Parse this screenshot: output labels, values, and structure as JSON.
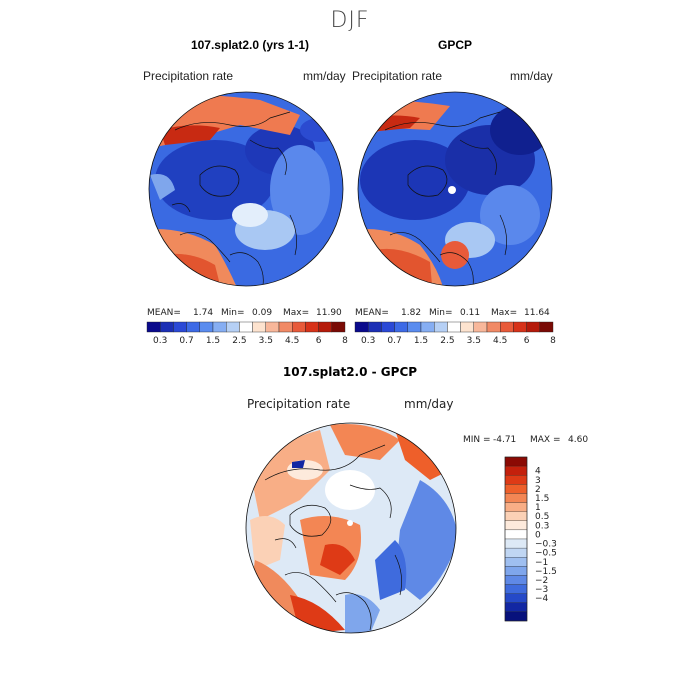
{
  "season": "DJF",
  "panels": [
    {
      "title": "107.splat2.0 (yrs 1-1)",
      "variable": "Precipitation rate",
      "units": "mm/day",
      "mean_label": "MEAN=",
      "mean": "1.74",
      "min_label": "Min=",
      "min": "0.09",
      "max_label": "Max=",
      "max": "11.90"
    },
    {
      "title": "GPCP",
      "variable": "Precipitation rate",
      "units": "mm/day",
      "mean_label": "MEAN=",
      "mean": "1.82",
      "min_label": "Min=",
      "min": "0.11",
      "max_label": "Max=",
      "max": "11.64"
    }
  ],
  "precip_colorbar": {
    "colors": [
      "#0a0a8c",
      "#1c2fb5",
      "#2b49d6",
      "#3d6ae6",
      "#5a8cef",
      "#86aef3",
      "#b6d0f5",
      "#ffffff",
      "#fde3cf",
      "#f8b79a",
      "#f18a66",
      "#e85a3a",
      "#d73219",
      "#b51a0a",
      "#7a0a05"
    ],
    "labels": [
      "0.3",
      "0.7",
      "1.5",
      "2.5",
      "3.5",
      "4.5",
      "6",
      "8"
    ]
  },
  "diff_panel": {
    "title": "107.splat2.0 - GPCP",
    "variable": "Precipitation rate",
    "units": "mm/day",
    "min_label": "MIN =",
    "min": "-4.71",
    "max_label": "MAX =",
    "max": "4.60"
  },
  "diff_colorbar": {
    "colors": [
      "#8b0a04",
      "#c4200c",
      "#de3a16",
      "#ee5f2a",
      "#f38654",
      "#f8ae86",
      "#fbd1b6",
      "#fdeadc",
      "#ffffff",
      "#dde9f6",
      "#c0d6f3",
      "#9fbff0",
      "#7fa6ec",
      "#5f89e6",
      "#3f6bdd",
      "#2549c8",
      "#1227a3",
      "#07117c"
    ],
    "labels": [
      "4",
      "3",
      "2",
      "1.5",
      "1",
      "0.5",
      "0.3",
      "0",
      "−0.3",
      "−0.5",
      "−1",
      "−1.5",
      "−2",
      "−3",
      "−4"
    ]
  }
}
